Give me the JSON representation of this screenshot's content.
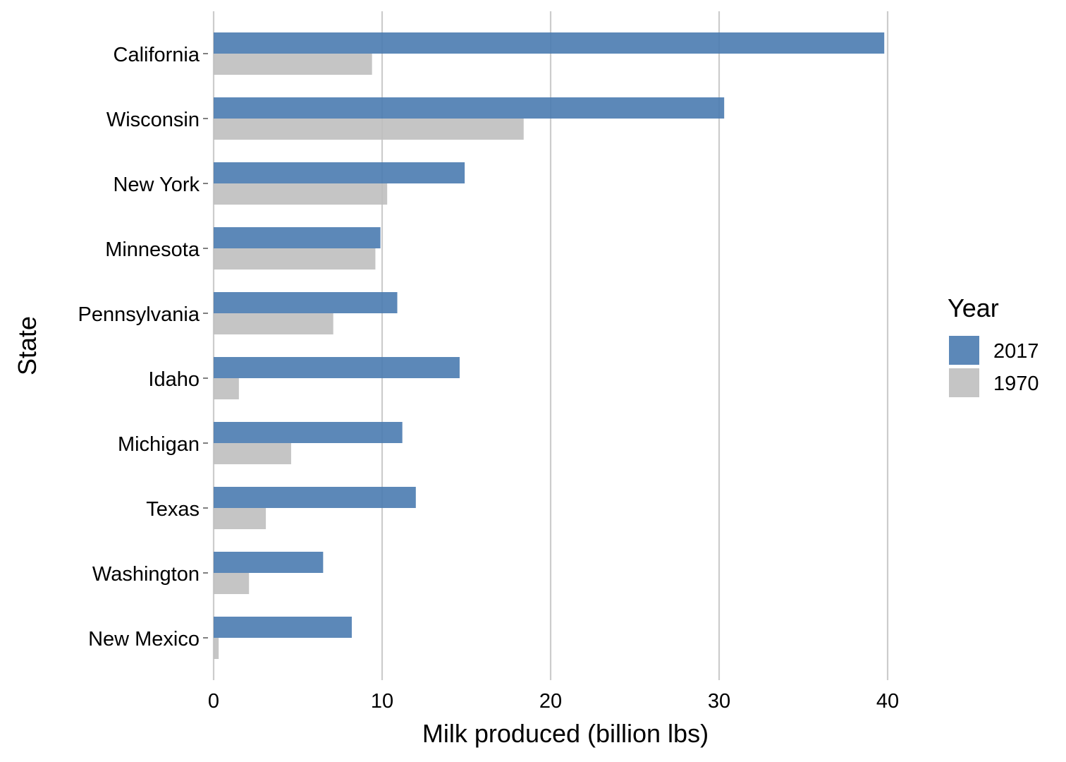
{
  "chart_data": {
    "type": "bar",
    "orientation": "horizontal",
    "categories": [
      "California",
      "Wisconsin",
      "New York",
      "Minnesota",
      "Pennsylvania",
      "Idaho",
      "Michigan",
      "Texas",
      "Washington",
      "New Mexico"
    ],
    "series": [
      {
        "name": "2017",
        "color": "#4a7bb0",
        "values": [
          39.8,
          30.3,
          14.9,
          9.9,
          10.9,
          14.6,
          11.2,
          12.0,
          6.5,
          8.2
        ]
      },
      {
        "name": "1970",
        "color": "#bfbfbf",
        "values": [
          9.4,
          18.4,
          10.3,
          9.6,
          7.1,
          1.5,
          4.6,
          3.1,
          2.1,
          0.3
        ]
      }
    ],
    "xlabel": "Milk produced (billion lbs)",
    "ylabel": "State",
    "xlim": [
      0,
      40
    ],
    "xticks": [
      0,
      10,
      20,
      30,
      40
    ],
    "xtick_labels": [
      "0",
      "10",
      "20",
      "30",
      "40"
    ],
    "grid": "vertical major",
    "legend": {
      "title": "Year",
      "position": "right",
      "entries": [
        "2017",
        "1970"
      ]
    }
  }
}
